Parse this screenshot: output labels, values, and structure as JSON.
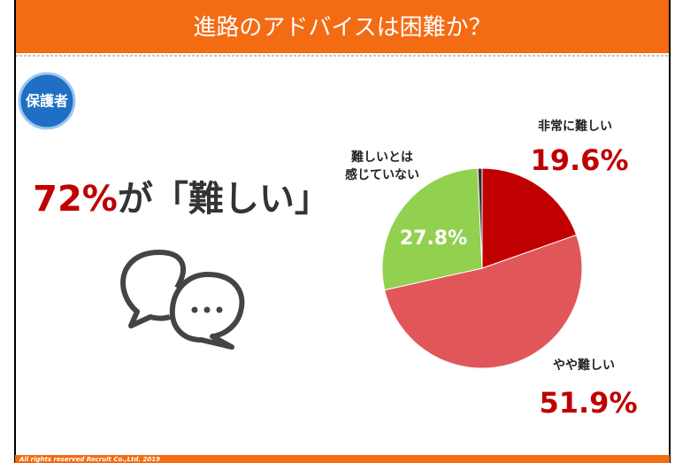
{
  "header": {
    "title": "進路のアドバイスは困難か？"
  },
  "badge": "保護者",
  "headline": {
    "highlight": "72%",
    "text": "が「難しい」"
  },
  "footer": "All rights reserved Recruit Co.,Ltd. 2019",
  "chart_data": {
    "type": "pie",
    "categories": [
      "非常に難しい",
      "やや難しい",
      "難しいとは\n感じていない",
      null
    ],
    "values": [
      19.6,
      51.9,
      27.8,
      0.7
    ],
    "value_labels": [
      "19.6%",
      "51.9%",
      "27.8%",
      null
    ],
    "colors": [
      "#c00000",
      "#e15759",
      "#92d050",
      "#333333"
    ]
  }
}
